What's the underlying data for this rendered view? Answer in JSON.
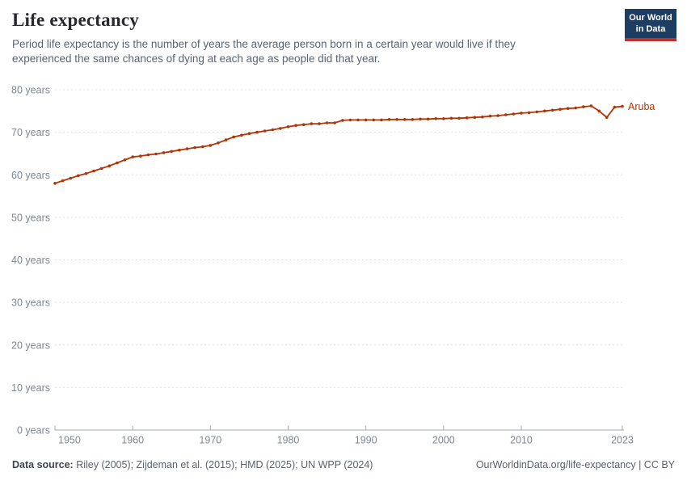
{
  "header": {
    "title": "Life expectancy",
    "subtitle": "Period life expectancy is the number of years the average person born in a certain year would live if they experienced the same chances of dying at each age as people did that year."
  },
  "logo": {
    "line1": "Our World",
    "line2": "in Data"
  },
  "footer": {
    "datasource_label": "Data source:",
    "datasource_text": " Riley (2005); Zijdeman et al. (2015); HMD (2025); UN WPP (2024)",
    "right_text": "OurWorldinData.org/life-expectancy | CC BY"
  },
  "colors": {
    "accent": "#b13507",
    "grid": "#dde2e6",
    "axis_line": "#a4abb2",
    "axis_text": "#7d8893",
    "logo_bg": "#1d3d63",
    "logo_stripe": "#bc3228"
  },
  "chart_data": {
    "type": "line",
    "entity_label": "Aruba",
    "line_color": "#b13507",
    "ylim": [
      0,
      80
    ],
    "ytick_interval": 10,
    "ytick_suffix": " years",
    "xticks": [
      1950,
      1960,
      1970,
      1980,
      1990,
      2000,
      2010,
      2023
    ],
    "grid": "horizontal-dashed",
    "legend_position": "end-of-line",
    "x": [
      1950,
      1951,
      1952,
      1953,
      1954,
      1955,
      1956,
      1957,
      1958,
      1959,
      1960,
      1961,
      1962,
      1963,
      1964,
      1965,
      1966,
      1967,
      1968,
      1969,
      1970,
      1971,
      1972,
      1973,
      1974,
      1975,
      1976,
      1977,
      1978,
      1979,
      1980,
      1981,
      1982,
      1983,
      1984,
      1985,
      1986,
      1987,
      1988,
      1989,
      1990,
      1991,
      1992,
      1993,
      1994,
      1995,
      1996,
      1997,
      1998,
      1999,
      2000,
      2001,
      2002,
      2003,
      2004,
      2005,
      2006,
      2007,
      2008,
      2009,
      2010,
      2011,
      2012,
      2013,
      2014,
      2015,
      2016,
      2017,
      2018,
      2019,
      2020,
      2021,
      2022,
      2023
    ],
    "series": [
      {
        "name": "Aruba",
        "values": [
          58.0,
          58.6,
          59.2,
          59.8,
          60.3,
          60.9,
          61.5,
          62.1,
          62.8,
          63.5,
          64.2,
          64.4,
          64.7,
          64.9,
          65.2,
          65.5,
          65.8,
          66.1,
          66.4,
          66.6,
          66.9,
          67.5,
          68.2,
          68.9,
          69.3,
          69.7,
          70.0,
          70.3,
          70.6,
          70.9,
          71.3,
          71.6,
          71.8,
          72.0,
          72.0,
          72.2,
          72.2,
          72.8,
          72.9,
          72.9,
          72.9,
          72.9,
          72.9,
          73.0,
          73.0,
          73.0,
          73.0,
          73.1,
          73.1,
          73.2,
          73.2,
          73.3,
          73.3,
          73.4,
          73.5,
          73.6,
          73.8,
          73.9,
          74.1,
          74.3,
          74.5,
          74.6,
          74.8,
          75.0,
          75.2,
          75.4,
          75.6,
          75.7,
          76.0,
          76.2,
          75.0,
          73.5,
          75.9,
          76.1
        ]
      }
    ]
  }
}
